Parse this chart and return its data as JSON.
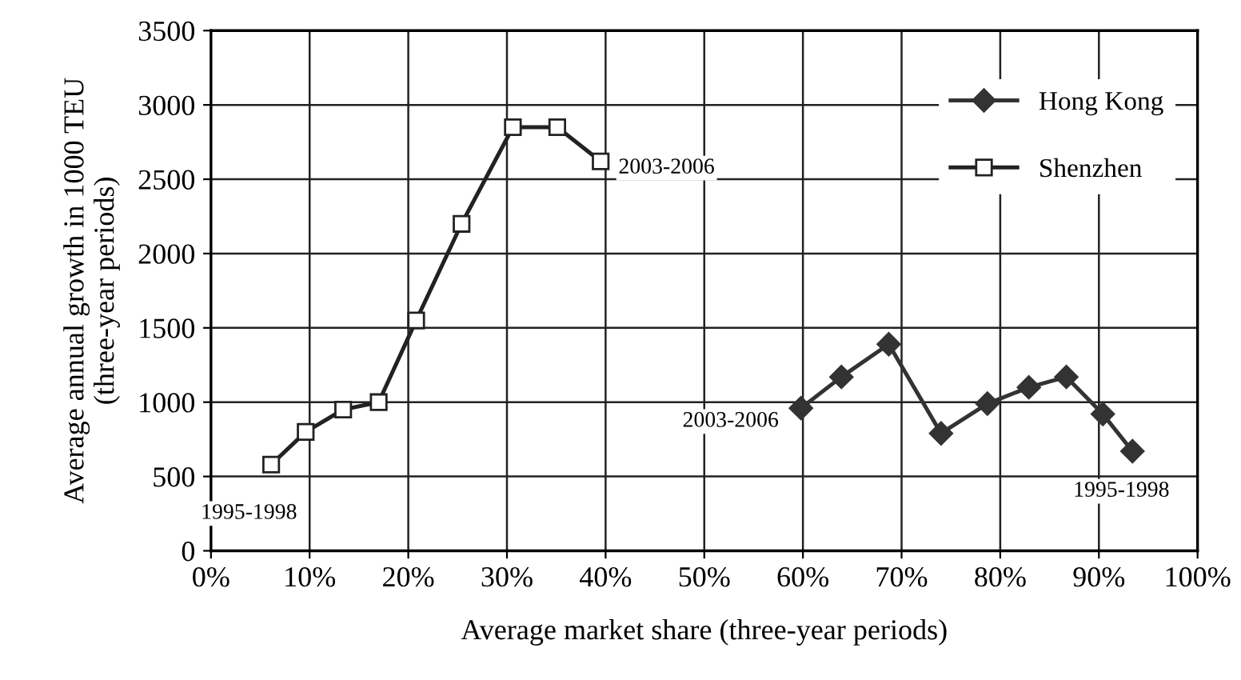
{
  "chart_data": {
    "type": "line",
    "xlabel": "Average market share (three-year periods)",
    "ylabel": "Average annual growth in 1000 TEU\n(three-year periods)",
    "series": [
      {
        "name": "Hong Kong",
        "color": "#333333",
        "marker": "diamond",
        "x": [
          59.8,
          63.9,
          68.7,
          74.0,
          78.7,
          82.9,
          86.7,
          90.4,
          93.4
        ],
        "values": [
          960,
          1170,
          1390,
          790,
          990,
          1100,
          1170,
          920,
          670
        ]
      },
      {
        "name": "Shenzhen",
        "color": "#222222",
        "marker": "square",
        "x": [
          6.1,
          9.6,
          13.4,
          17.0,
          20.8,
          25.4,
          30.6,
          35.1,
          39.5
        ],
        "values": [
          580,
          800,
          950,
          1000,
          1550,
          2200,
          2850,
          2850,
          2620
        ]
      }
    ],
    "annotations": [
      {
        "text": "1995-1998",
        "x": 6.1,
        "y": 580
      },
      {
        "text": "2003-2006",
        "x": 39.5,
        "y": 2620
      },
      {
        "text": "2003-2006",
        "x": 59.8,
        "y": 960
      },
      {
        "text": "1995-1998",
        "x": 93.4,
        "y": 670
      }
    ],
    "xlim": [
      0,
      100
    ],
    "xticks": [
      {
        "value": 0,
        "label": "0%"
      },
      {
        "value": 10,
        "label": "10%"
      },
      {
        "value": 20,
        "label": "20%"
      },
      {
        "value": 30,
        "label": "30%"
      },
      {
        "value": 40,
        "label": "40%"
      },
      {
        "value": 50,
        "label": "50%"
      },
      {
        "value": 60,
        "label": "60%"
      },
      {
        "value": 70,
        "label": "70%"
      },
      {
        "value": 80,
        "label": "80%"
      },
      {
        "value": 90,
        "label": "90%"
      },
      {
        "value": 100,
        "label": "100%"
      }
    ],
    "ylim": [
      0,
      3500
    ],
    "yticks": [
      0,
      500,
      1000,
      1500,
      2000,
      2500,
      3000,
      3500
    ],
    "grid": true,
    "legend": "top right"
  }
}
